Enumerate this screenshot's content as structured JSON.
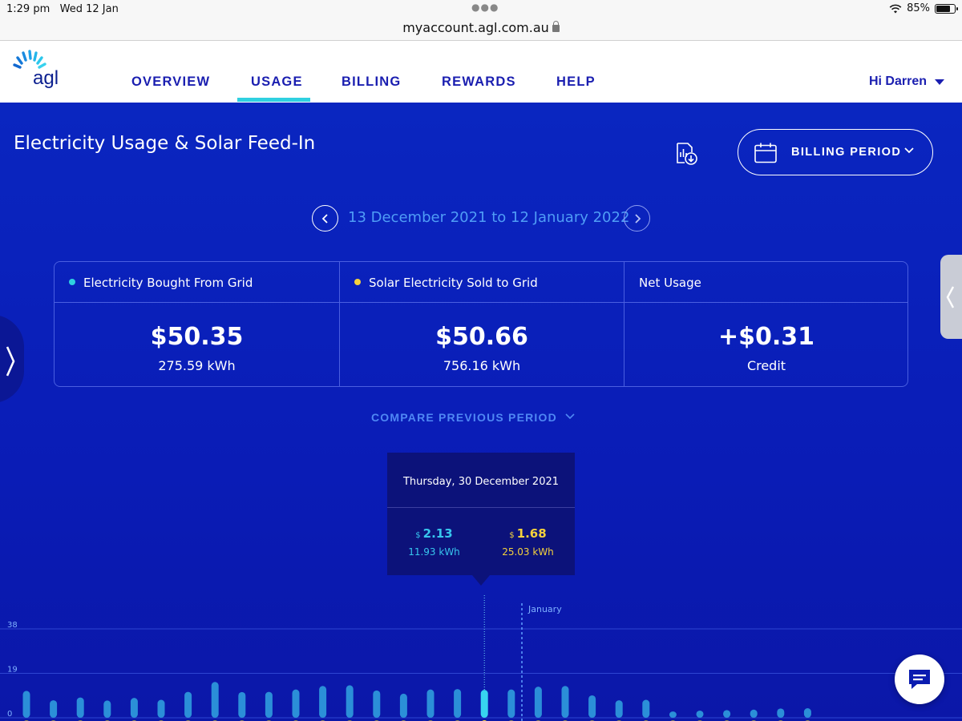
{
  "status_bar": {
    "time": "1:29 pm",
    "date": "Wed 12 Jan",
    "battery": "85%",
    "battery_level": 0.85
  },
  "browser": {
    "url": "myaccount.agl.com.au"
  },
  "nav": {
    "logo_text": "agl",
    "items": [
      {
        "label": "OVERVIEW",
        "active": false
      },
      {
        "label": "USAGE",
        "active": true
      },
      {
        "label": "BILLING",
        "active": false
      },
      {
        "label": "REWARDS",
        "active": false
      },
      {
        "label": "HELP",
        "active": false
      }
    ],
    "user_greeting": "Hi Darren",
    "accent_color": "#2fd0e0"
  },
  "page": {
    "title": "Electricity Usage & Solar Feed-In",
    "period_selector_label": "BILLING PERIOD",
    "period_range": "13 December 2021 to 12 January 2022",
    "compare_label": "COMPARE PREVIOUS PERIOD"
  },
  "summary": [
    {
      "label": "Electricity Bought From Grid",
      "dot_color": "#2fd0e0",
      "amount": "$50.35",
      "sub": "275.59 kWh"
    },
    {
      "label": "Solar Electricity Sold to Grid",
      "dot_color": "#f5d23c",
      "amount": "$50.66",
      "sub": "756.16 kWh"
    },
    {
      "label": "Net Usage",
      "dot_color": "",
      "amount": "+$0.31",
      "sub": "Credit"
    }
  ],
  "tooltip": {
    "date": "Thursday, 30 December 2021",
    "bought": {
      "currency": "$",
      "amount": "2.13",
      "kwh": "11.93 kWh",
      "color": "#37c6ee"
    },
    "sold": {
      "currency": "$",
      "amount": "1.68",
      "kwh": "25.03 kWh",
      "color": "#f5d23c"
    }
  },
  "chart_data": {
    "type": "bar",
    "y_ticks": [
      "38",
      "19",
      "0"
    ],
    "y_unit": "kWh",
    "ylim": [
      0,
      38
    ],
    "month_marker": "January",
    "bought_color": "#2b8fd8",
    "sold_color": "#8d8a5c",
    "highlight_color": "#37d4f0",
    "highlight_index": 17,
    "bought_kwh": [
      11.5,
      7.5,
      8.7,
      7.4,
      8.5,
      7.7,
      11.1,
      15.3,
      11.0,
      11.1,
      12.1,
      13.6,
      13.9,
      11.7,
      10.3,
      12.1,
      12.3,
      11.93,
      12.1,
      13.3,
      13.6,
      9.6,
      7.5,
      7.7,
      2.7,
      3.1,
      3.3,
      3.5,
      4.0,
      4.1
    ]
  }
}
